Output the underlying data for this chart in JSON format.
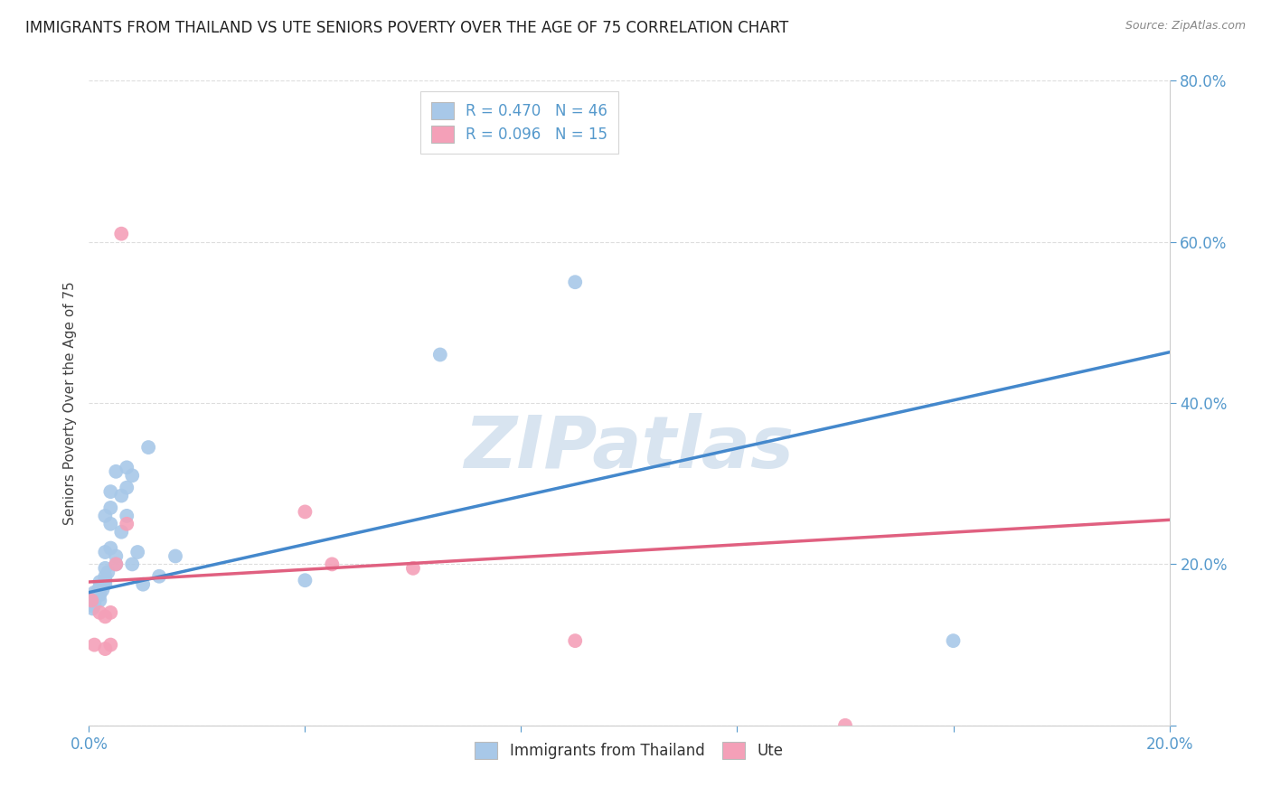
{
  "title": "IMMIGRANTS FROM THAILAND VS UTE SENIORS POVERTY OVER THE AGE OF 75 CORRELATION CHART",
  "source": "Source: ZipAtlas.com",
  "ylabel": "Seniors Poverty Over the Age of 75",
  "xlabel_series1": "Immigrants from Thailand",
  "xlabel_series2": "Ute",
  "r1": 0.47,
  "n1": 46,
  "r2": 0.096,
  "n2": 15,
  "xlim": [
    0.0,
    0.2
  ],
  "ylim": [
    0.0,
    0.8
  ],
  "xticks": [
    0.0,
    0.04,
    0.08,
    0.12,
    0.16,
    0.2
  ],
  "yticks": [
    0.0,
    0.2,
    0.4,
    0.6,
    0.8
  ],
  "xtick_labels": [
    "0.0%",
    "",
    "",
    "",
    "",
    "20.0%"
  ],
  "ytick_labels": [
    "",
    "20.0%",
    "40.0%",
    "60.0%",
    "80.0%"
  ],
  "color_blue": "#a8c8e8",
  "color_pink": "#f4a0b8",
  "line_blue": "#4488cc",
  "line_pink": "#e06080",
  "tick_color": "#5599cc",
  "background_color": "#ffffff",
  "title_color": "#222222",
  "series1_x": [
    0.0005,
    0.0006,
    0.0007,
    0.0008,
    0.001,
    0.001,
    0.001,
    0.001,
    0.0015,
    0.0015,
    0.002,
    0.002,
    0.002,
    0.002,
    0.002,
    0.0025,
    0.003,
    0.003,
    0.003,
    0.003,
    0.003,
    0.003,
    0.0035,
    0.004,
    0.004,
    0.004,
    0.004,
    0.005,
    0.005,
    0.005,
    0.006,
    0.006,
    0.007,
    0.007,
    0.007,
    0.008,
    0.008,
    0.009,
    0.01,
    0.011,
    0.013,
    0.016,
    0.04,
    0.065,
    0.09,
    0.16
  ],
  "series1_y": [
    0.155,
    0.15,
    0.145,
    0.148,
    0.15,
    0.155,
    0.16,
    0.165,
    0.16,
    0.165,
    0.155,
    0.162,
    0.168,
    0.172,
    0.178,
    0.168,
    0.175,
    0.18,
    0.185,
    0.195,
    0.215,
    0.26,
    0.19,
    0.22,
    0.25,
    0.27,
    0.29,
    0.2,
    0.21,
    0.315,
    0.24,
    0.285,
    0.26,
    0.295,
    0.32,
    0.2,
    0.31,
    0.215,
    0.175,
    0.345,
    0.185,
    0.21,
    0.18,
    0.46,
    0.55,
    0.105
  ],
  "series2_x": [
    0.0005,
    0.001,
    0.002,
    0.003,
    0.003,
    0.004,
    0.004,
    0.005,
    0.006,
    0.007,
    0.04,
    0.045,
    0.06,
    0.09,
    0.14
  ],
  "series2_y": [
    0.155,
    0.1,
    0.14,
    0.135,
    0.095,
    0.14,
    0.1,
    0.2,
    0.61,
    0.25,
    0.265,
    0.2,
    0.195,
    0.105,
    0.0
  ],
  "line1_x0": 0.0,
  "line1_y0": 0.165,
  "line1_x1": 0.2,
  "line1_y1": 0.463,
  "line2_x0": 0.0,
  "line2_y0": 0.178,
  "line2_x1": 0.2,
  "line2_y1": 0.255,
  "watermark": "ZIPatlas",
  "watermark_color": "#d8e4f0"
}
